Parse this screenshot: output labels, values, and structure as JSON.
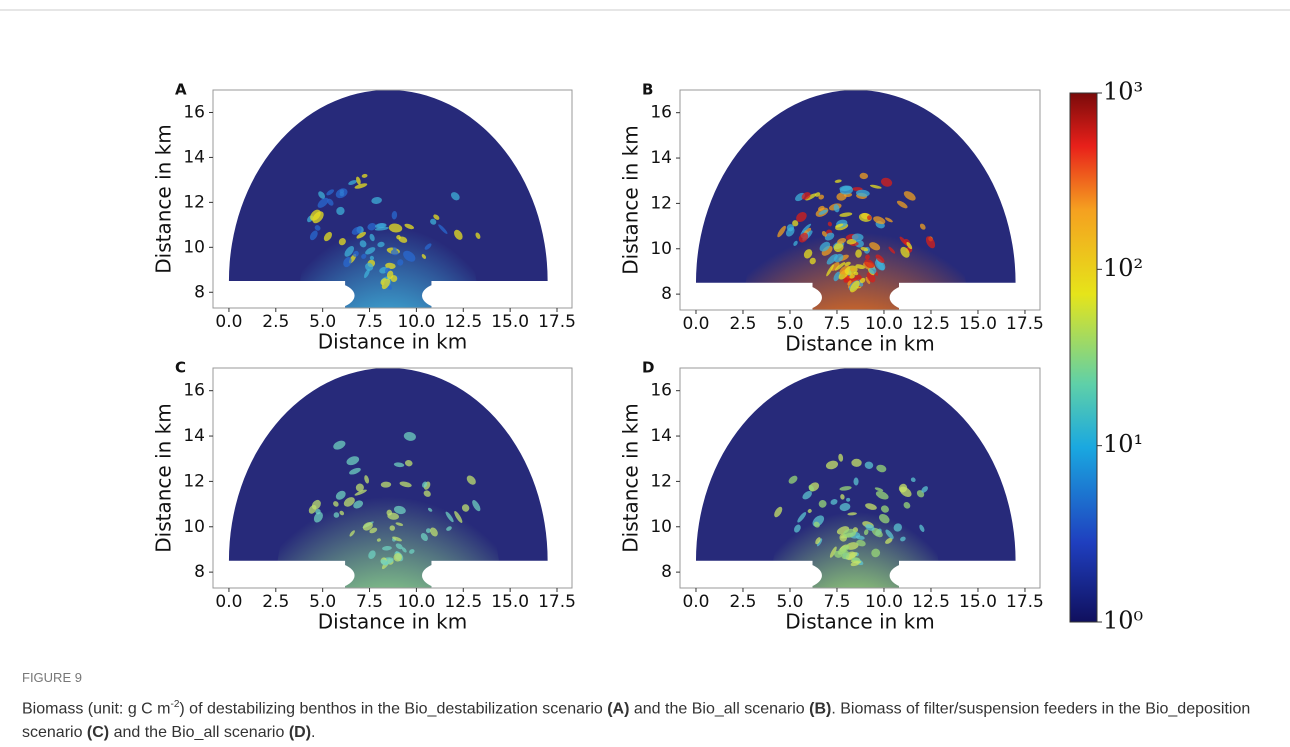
{
  "chart_data": [
    {
      "type": "heatmap",
      "title": "A",
      "xlabel": "Distance in km",
      "ylabel": "Distance in km",
      "xlim": [
        -0.85,
        18.3
      ],
      "ylim": [
        7.3,
        17
      ],
      "xticks": [
        {
          "value": 0,
          "label": "0.0"
        },
        2.5,
        {
          "value": 5,
          "label": "5.0"
        },
        7.5,
        {
          "value": 10,
          "label": "10.0"
        },
        12.5,
        {
          "value": 15,
          "label": "15.0"
        },
        17.5
      ],
      "yticks": [
        8,
        10,
        12,
        14,
        16
      ]
    },
    {
      "type": "heatmap",
      "title": "B",
      "xlabel": "Distance in km",
      "ylabel": "Distance in km",
      "xlim": [
        -0.85,
        18.3
      ],
      "ylim": [
        7.3,
        17
      ],
      "xticks": [
        {
          "value": 0,
          "label": "0.0"
        },
        2.5,
        {
          "value": 5,
          "label": "5.0"
        },
        7.5,
        {
          "value": 10,
          "label": "10.0"
        },
        12.5,
        {
          "value": 15,
          "label": "15.0"
        },
        17.5
      ],
      "yticks": [
        8,
        10,
        12,
        14,
        16
      ]
    },
    {
      "type": "heatmap",
      "title": "C",
      "xlabel": "Distance in km",
      "ylabel": "Distance in km",
      "xlim": [
        -0.85,
        18.3
      ],
      "ylim": [
        7.3,
        17
      ],
      "xticks": [
        {
          "value": 0,
          "label": "0.0"
        },
        2.5,
        {
          "value": 5,
          "label": "5.0"
        },
        7.5,
        {
          "value": 10,
          "label": "10.0"
        },
        12.5,
        {
          "value": 15,
          "label": "15.0"
        },
        17.5
      ],
      "yticks": [
        8,
        10,
        12,
        14,
        16
      ]
    },
    {
      "type": "heatmap",
      "title": "D",
      "xlabel": "Distance in km",
      "ylabel": "Distance in km",
      "xlim": [
        -0.85,
        18.3
      ],
      "ylim": [
        7.3,
        17
      ],
      "xticks": [
        {
          "value": 0,
          "label": "0.0"
        },
        2.5,
        {
          "value": 5,
          "label": "5.0"
        },
        7.5,
        {
          "value": 10,
          "label": "10.0"
        },
        12.5,
        {
          "value": 15,
          "label": "15.0"
        },
        17.5
      ],
      "yticks": [
        8,
        10,
        12,
        14,
        16
      ]
    }
  ],
  "colorbar": {
    "scale": "log",
    "lim": [
      1,
      1000
    ],
    "ticks": [
      {
        "value": 1000,
        "label": "10³"
      },
      {
        "value": 100,
        "label": "10²"
      },
      {
        "value": 10,
        "label": "10¹"
      },
      {
        "value": 1,
        "label": "10⁰"
      }
    ]
  },
  "caption": {
    "label": "FIGURE 9",
    "runs": [
      "Biomass (unit: g C m",
      "-2",
      ") of destabilizing benthos in the Bio_destabilization scenario ",
      "(A)",
      " and the Bio_all scenario ",
      "(B)",
      ". Biomass of filter/suspension feeders in the Bio_deposition scenario ",
      "(C)",
      " and the Bio_all scenario ",
      "(D)",
      "."
    ]
  }
}
